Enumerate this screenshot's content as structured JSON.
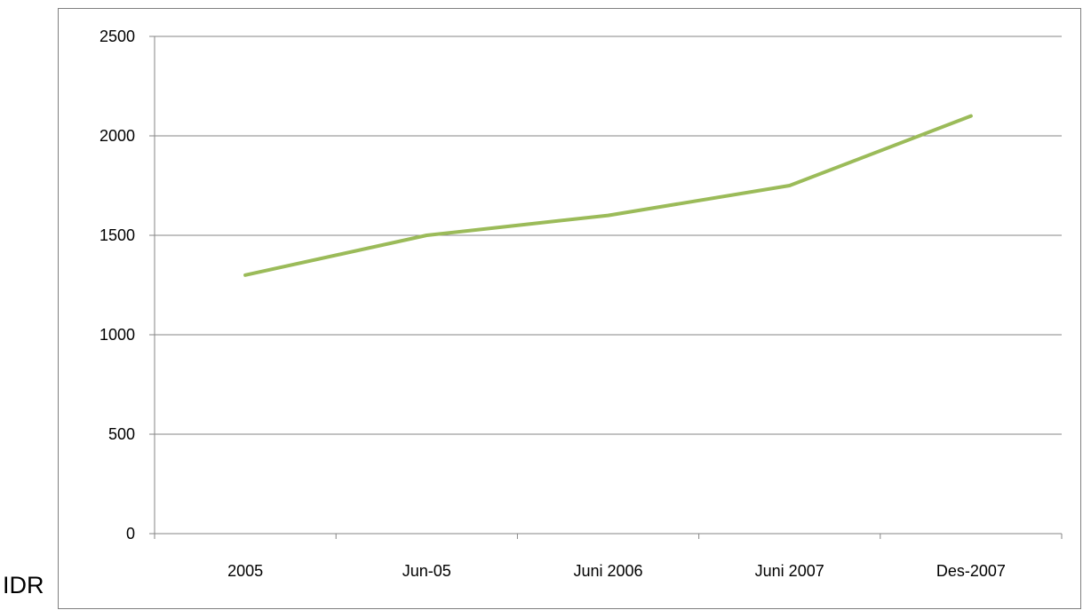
{
  "chart_data": {
    "type": "line",
    "title": "",
    "xlabel": "",
    "ylabel": "",
    "unit_label": "IDR",
    "categories": [
      "2005",
      "Jun-05",
      "Juni 2006",
      "Juni 2007",
      "Des-2007"
    ],
    "series": [
      {
        "values": [
          1300,
          1500,
          1600,
          1750,
          2100
        ],
        "color": "#9bbb59"
      }
    ],
    "ylim": [
      0,
      2500
    ],
    "yticks": [
      "0",
      "500",
      "1000",
      "1500",
      "2000",
      "2500"
    ],
    "grid": true,
    "legend": "none"
  }
}
